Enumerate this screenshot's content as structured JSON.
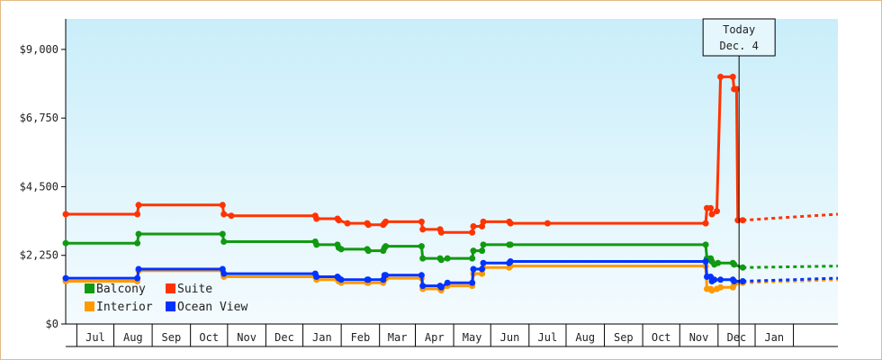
{
  "chart_data": {
    "type": "line",
    "title": "",
    "xlabel": "",
    "ylabel": "",
    "ylim": [
      0,
      10000
    ],
    "yticks": [
      {
        "value": 0,
        "label": "$0"
      },
      {
        "value": 2250,
        "label": "$2,250"
      },
      {
        "value": 4500,
        "label": "$4,500"
      },
      {
        "value": 6750,
        "label": "$6,750"
      },
      {
        "value": 9000,
        "label": "$9,000"
      }
    ],
    "x_start": "2023-06-01",
    "x_end": "2025-02-15",
    "months": [
      {
        "label": "Jul",
        "start": "2023-06-10",
        "end": "2023-07-10"
      },
      {
        "label": "Aug",
        "start": "2023-07-10",
        "end": "2023-08-10"
      },
      {
        "label": "Sep",
        "start": "2023-08-10",
        "end": "2023-09-10"
      },
      {
        "label": "Oct",
        "start": "2023-09-10",
        "end": "2023-10-10"
      },
      {
        "label": "Nov",
        "start": "2023-10-10",
        "end": "2023-11-10"
      },
      {
        "label": "Dec",
        "start": "2023-11-10",
        "end": "2023-12-10"
      },
      {
        "label": "Jan",
        "start": "2023-12-10",
        "end": "2024-01-10"
      },
      {
        "label": "Feb",
        "start": "2024-01-10",
        "end": "2024-02-10"
      },
      {
        "label": "Mar",
        "start": "2024-02-10",
        "end": "2024-03-10"
      },
      {
        "label": "Apr",
        "start": "2024-03-10",
        "end": "2024-04-10"
      },
      {
        "label": "May",
        "start": "2024-04-10",
        "end": "2024-05-10"
      },
      {
        "label": "Jun",
        "start": "2024-05-10",
        "end": "2024-06-10"
      },
      {
        "label": "Jul",
        "start": "2024-06-10",
        "end": "2024-07-10"
      },
      {
        "label": "Aug",
        "start": "2024-07-10",
        "end": "2024-08-10"
      },
      {
        "label": "Sep",
        "start": "2024-08-10",
        "end": "2024-09-10"
      },
      {
        "label": "Oct",
        "start": "2024-09-10",
        "end": "2024-10-10"
      },
      {
        "label": "Nov",
        "start": "2024-10-10",
        "end": "2024-11-10"
      },
      {
        "label": "Dec",
        "start": "2024-11-10",
        "end": "2024-12-10"
      },
      {
        "label": "Jan",
        "start": "2024-12-10",
        "end": "2025-01-10"
      }
    ],
    "today": {
      "date": "2024-11-27",
      "line1": "Today",
      "line2": "Dec. 4"
    },
    "grid": false,
    "legend_position": "bottom-left",
    "series": [
      {
        "name": "Suite",
        "color": "#ff3300",
        "points": [
          [
            "2023-06-01",
            3600
          ],
          [
            "2023-07-29",
            3600
          ],
          [
            "2023-07-30",
            3900
          ],
          [
            "2023-10-06",
            3900
          ],
          [
            "2023-10-07",
            3600
          ],
          [
            "2023-10-13",
            3550
          ],
          [
            "2023-12-20",
            3550
          ],
          [
            "2023-12-21",
            3450
          ],
          [
            "2024-01-07",
            3450
          ],
          [
            "2024-01-08",
            3400
          ],
          [
            "2024-01-15",
            3300
          ],
          [
            "2024-01-31",
            3300
          ],
          [
            "2024-02-01",
            3250
          ],
          [
            "2024-02-13",
            3250
          ],
          [
            "2024-02-14",
            3300
          ],
          [
            "2024-02-15",
            3350
          ],
          [
            "2024-03-15",
            3350
          ],
          [
            "2024-03-16",
            3100
          ],
          [
            "2024-03-30",
            3100
          ],
          [
            "2024-03-31",
            3000
          ],
          [
            "2024-04-25",
            3000
          ],
          [
            "2024-04-26",
            3200
          ],
          [
            "2024-05-03",
            3200
          ],
          [
            "2024-05-04",
            3350
          ],
          [
            "2024-05-25",
            3350
          ],
          [
            "2024-05-26",
            3300
          ],
          [
            "2024-06-25",
            3300
          ],
          [
            "2024-10-31",
            3300
          ],
          [
            "2024-11-01",
            3800
          ],
          [
            "2024-11-04",
            3800
          ],
          [
            "2024-11-05",
            3600
          ],
          [
            "2024-11-09",
            3700
          ],
          [
            "2024-11-12",
            8100
          ],
          [
            "2024-11-22",
            8100
          ],
          [
            "2024-11-23",
            7700
          ],
          [
            "2024-11-25",
            7700
          ],
          [
            "2024-11-26",
            3400
          ],
          [
            "2024-11-30",
            3400
          ]
        ],
        "forecast": [
          [
            "2024-11-30",
            3400
          ],
          [
            "2025-02-15",
            3600
          ]
        ]
      },
      {
        "name": "Balcony",
        "color": "#119911",
        "points": [
          [
            "2023-06-01",
            2650
          ],
          [
            "2023-07-29",
            2650
          ],
          [
            "2023-07-30",
            2950
          ],
          [
            "2023-10-06",
            2950
          ],
          [
            "2023-10-07",
            2700
          ],
          [
            "2023-12-20",
            2700
          ],
          [
            "2023-12-21",
            2600
          ],
          [
            "2024-01-07",
            2600
          ],
          [
            "2024-01-08",
            2500
          ],
          [
            "2024-01-10",
            2450
          ],
          [
            "2024-01-31",
            2450
          ],
          [
            "2024-02-01",
            2400
          ],
          [
            "2024-02-13",
            2400
          ],
          [
            "2024-02-14",
            2500
          ],
          [
            "2024-02-15",
            2550
          ],
          [
            "2024-03-15",
            2550
          ],
          [
            "2024-03-16",
            2150
          ],
          [
            "2024-03-30",
            2150
          ],
          [
            "2024-03-31",
            2100
          ],
          [
            "2024-04-05",
            2150
          ],
          [
            "2024-04-25",
            2150
          ],
          [
            "2024-04-26",
            2400
          ],
          [
            "2024-05-03",
            2400
          ],
          [
            "2024-05-04",
            2600
          ],
          [
            "2024-05-25",
            2600
          ],
          [
            "2024-05-26",
            2600
          ],
          [
            "2024-10-31",
            2600
          ],
          [
            "2024-11-01",
            2150
          ],
          [
            "2024-11-04",
            2150
          ],
          [
            "2024-11-05",
            2050
          ],
          [
            "2024-11-07",
            1950
          ],
          [
            "2024-11-10",
            2000
          ],
          [
            "2024-11-22",
            2000
          ],
          [
            "2024-11-23",
            1950
          ],
          [
            "2024-11-30",
            1850
          ]
        ],
        "forecast": [
          [
            "2024-11-30",
            1850
          ],
          [
            "2025-02-15",
            1900
          ]
        ]
      },
      {
        "name": "Interior",
        "color": "#ff9900",
        "points": [
          [
            "2023-06-01",
            1400
          ],
          [
            "2023-07-29",
            1400
          ],
          [
            "2023-07-30",
            1750
          ],
          [
            "2023-10-06",
            1750
          ],
          [
            "2023-10-07",
            1550
          ],
          [
            "2023-12-20",
            1550
          ],
          [
            "2023-12-21",
            1450
          ],
          [
            "2024-01-07",
            1450
          ],
          [
            "2024-01-08",
            1400
          ],
          [
            "2024-01-10",
            1350
          ],
          [
            "2024-01-31",
            1350
          ],
          [
            "2024-02-01",
            1350
          ],
          [
            "2024-02-13",
            1350
          ],
          [
            "2024-02-14",
            1450
          ],
          [
            "2024-02-15",
            1500
          ],
          [
            "2024-03-15",
            1500
          ],
          [
            "2024-03-16",
            1150
          ],
          [
            "2024-03-30",
            1150
          ],
          [
            "2024-03-31",
            1100
          ],
          [
            "2024-04-05",
            1250
          ],
          [
            "2024-04-25",
            1250
          ],
          [
            "2024-04-26",
            1650
          ],
          [
            "2024-05-03",
            1650
          ],
          [
            "2024-05-04",
            1850
          ],
          [
            "2024-05-25",
            1850
          ],
          [
            "2024-05-26",
            1900
          ],
          [
            "2024-10-31",
            1900
          ],
          [
            "2024-11-01",
            1150
          ],
          [
            "2024-11-04",
            1150
          ],
          [
            "2024-11-05",
            1100
          ],
          [
            "2024-11-09",
            1150
          ],
          [
            "2024-11-12",
            1200
          ],
          [
            "2024-11-22",
            1200
          ],
          [
            "2024-11-23",
            1300
          ],
          [
            "2024-11-30",
            1350
          ]
        ],
        "forecast": [
          [
            "2024-11-30",
            1350
          ],
          [
            "2025-02-15",
            1450
          ]
        ]
      },
      {
        "name": "Ocean View",
        "color": "#0033ff",
        "points": [
          [
            "2023-06-01",
            1500
          ],
          [
            "2023-07-29",
            1500
          ],
          [
            "2023-07-30",
            1800
          ],
          [
            "2023-10-06",
            1800
          ],
          [
            "2023-10-07",
            1650
          ],
          [
            "2023-12-20",
            1650
          ],
          [
            "2023-12-21",
            1550
          ],
          [
            "2024-01-07",
            1550
          ],
          [
            "2024-01-08",
            1500
          ],
          [
            "2024-01-10",
            1450
          ],
          [
            "2024-01-31",
            1450
          ],
          [
            "2024-02-01",
            1450
          ],
          [
            "2024-02-13",
            1450
          ],
          [
            "2024-02-14",
            1600
          ],
          [
            "2024-02-15",
            1600
          ],
          [
            "2024-03-15",
            1600
          ],
          [
            "2024-03-16",
            1250
          ],
          [
            "2024-03-30",
            1250
          ],
          [
            "2024-03-31",
            1200
          ],
          [
            "2024-04-05",
            1350
          ],
          [
            "2024-04-25",
            1350
          ],
          [
            "2024-04-26",
            1800
          ],
          [
            "2024-05-03",
            1800
          ],
          [
            "2024-05-04",
            2000
          ],
          [
            "2024-05-25",
            2000
          ],
          [
            "2024-05-26",
            2050
          ],
          [
            "2024-10-31",
            2050
          ],
          [
            "2024-11-01",
            1550
          ],
          [
            "2024-11-04",
            1550
          ],
          [
            "2024-11-05",
            1400
          ],
          [
            "2024-11-07",
            1450
          ],
          [
            "2024-11-12",
            1450
          ],
          [
            "2024-11-22",
            1450
          ],
          [
            "2024-11-23",
            1400
          ],
          [
            "2024-11-30",
            1400
          ]
        ],
        "forecast": [
          [
            "2024-11-30",
            1400
          ],
          [
            "2025-02-15",
            1500
          ]
        ]
      }
    ]
  },
  "legend": {
    "items": [
      {
        "label": "Balcony",
        "color": "#119911"
      },
      {
        "label": "Suite",
        "color": "#ff3300"
      },
      {
        "label": "Interior",
        "color": "#ff9900"
      },
      {
        "label": "Ocean View",
        "color": "#0033ff"
      }
    ]
  }
}
